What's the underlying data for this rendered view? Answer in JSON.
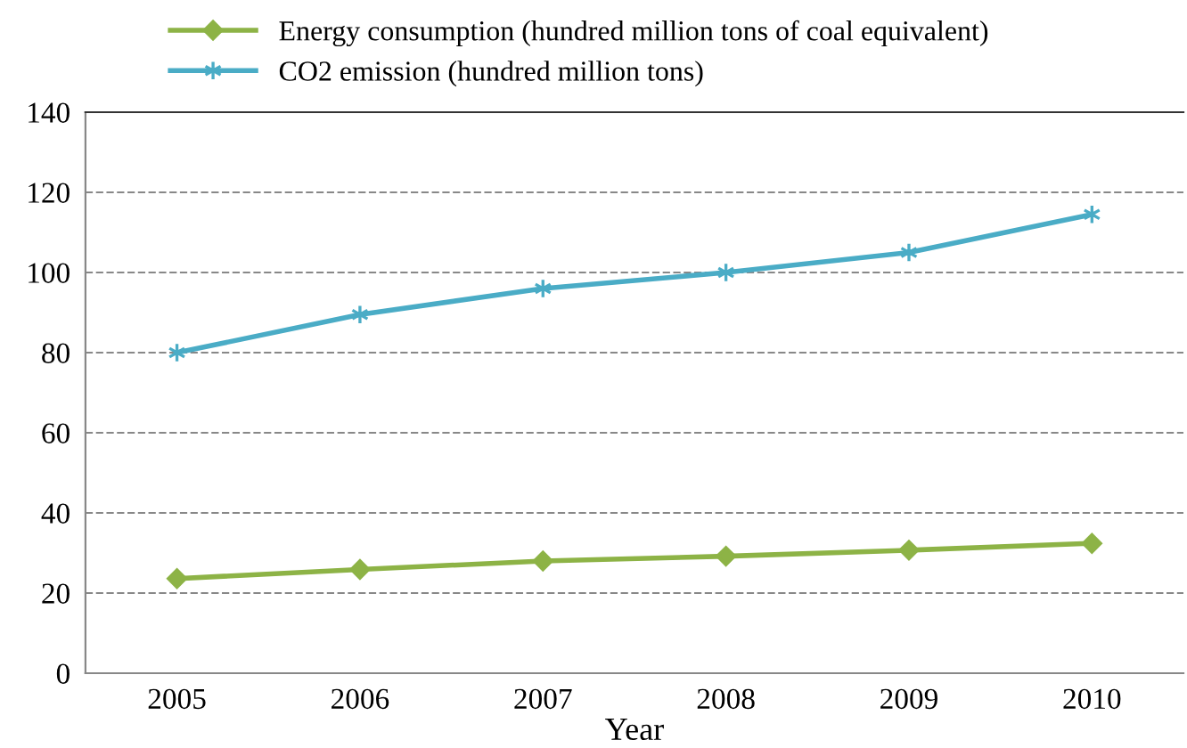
{
  "chart_data": {
    "type": "line",
    "xlabel": "Year",
    "categories": [
      "2005",
      "2006",
      "2007",
      "2008",
      "2009",
      "2010"
    ],
    "series": [
      {
        "name": "Energy consumption (hundred million tons of coal equivalent)",
        "color": "#8db346",
        "marker": "diamond",
        "values": [
          23.6,
          25.9,
          28,
          29.2,
          30.7,
          32.4
        ]
      },
      {
        "name": "CO2 emission (hundred million tons)",
        "color": "#4aacc6",
        "marker": "cross",
        "values": [
          80,
          89.5,
          96,
          100,
          105,
          114.5
        ]
      }
    ],
    "ylim": [
      0,
      140
    ],
    "yticks": [
      0,
      20,
      40,
      60,
      80,
      100,
      120,
      140
    ],
    "grid": "y",
    "legend": "top",
    "line_style": "solid"
  }
}
